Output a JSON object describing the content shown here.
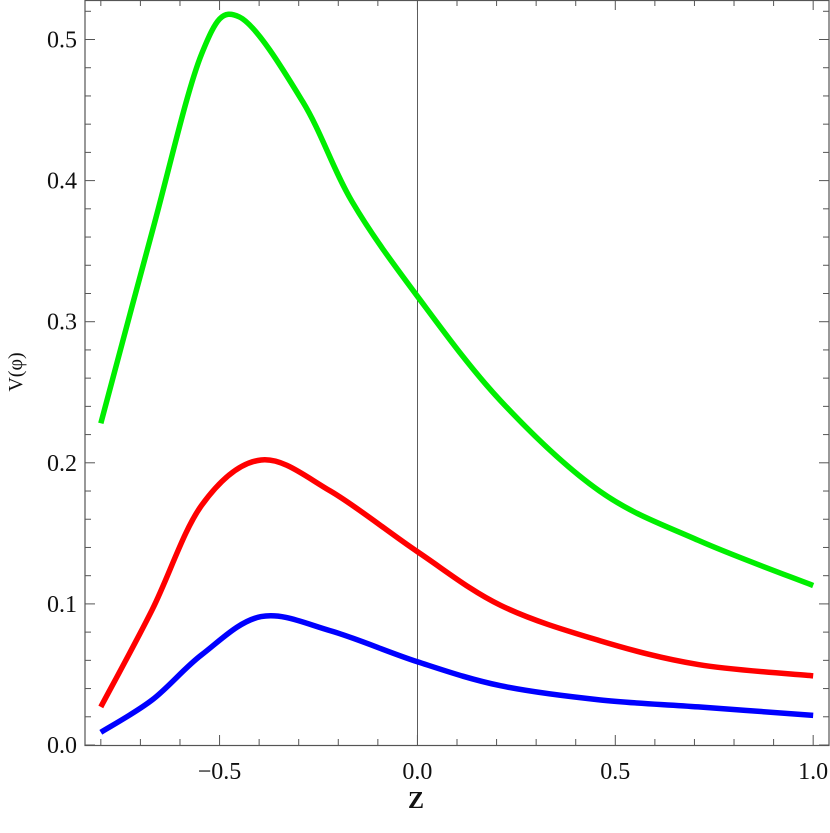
{
  "chart_data": {
    "type": "line",
    "xlabel": "Z",
    "ylabel": "V(φ)",
    "xlim": [
      -0.84,
      1.04
    ],
    "ylim": [
      0.0,
      0.528
    ],
    "xticks": [
      -0.5,
      0.0,
      0.5,
      1.0
    ],
    "xtick_labels": [
      "−0.5",
      "0.0",
      "0.5",
      "1.0"
    ],
    "yticks": [
      0.0,
      0.1,
      0.2,
      0.3,
      0.4,
      0.5
    ],
    "ytick_labels": [
      "0.0",
      "0.1",
      "0.2",
      "0.3",
      "0.4",
      "0.5"
    ],
    "grid": false,
    "vertical_line_at_x": 0.0,
    "series": [
      {
        "color": "#00ee00",
        "x": [
          -0.8,
          -0.67,
          -0.545,
          -0.45,
          -0.29,
          -0.165,
          0.0,
          0.21,
          0.46,
          0.71,
          1.0
        ],
        "y": [
          0.228,
          0.364,
          0.49,
          0.516,
          0.456,
          0.385,
          0.318,
          0.244,
          0.18,
          0.145,
          0.113
        ]
      },
      {
        "color": "#ff0000",
        "x": [
          -0.8,
          -0.67,
          -0.545,
          -0.395,
          -0.22,
          0.0,
          0.21,
          0.46,
          0.71,
          1.0
        ],
        "y": [
          0.027,
          0.096,
          0.17,
          0.202,
          0.18,
          0.137,
          0.099,
          0.074,
          0.057,
          0.049
        ]
      },
      {
        "color": "#0000ff",
        "x": [
          -0.8,
          -0.67,
          -0.545,
          -0.395,
          -0.22,
          0.0,
          0.21,
          0.46,
          0.71,
          1.0
        ],
        "y": [
          0.009,
          0.032,
          0.064,
          0.091,
          0.081,
          0.059,
          0.042,
          0.032,
          0.027,
          0.021
        ]
      }
    ]
  }
}
